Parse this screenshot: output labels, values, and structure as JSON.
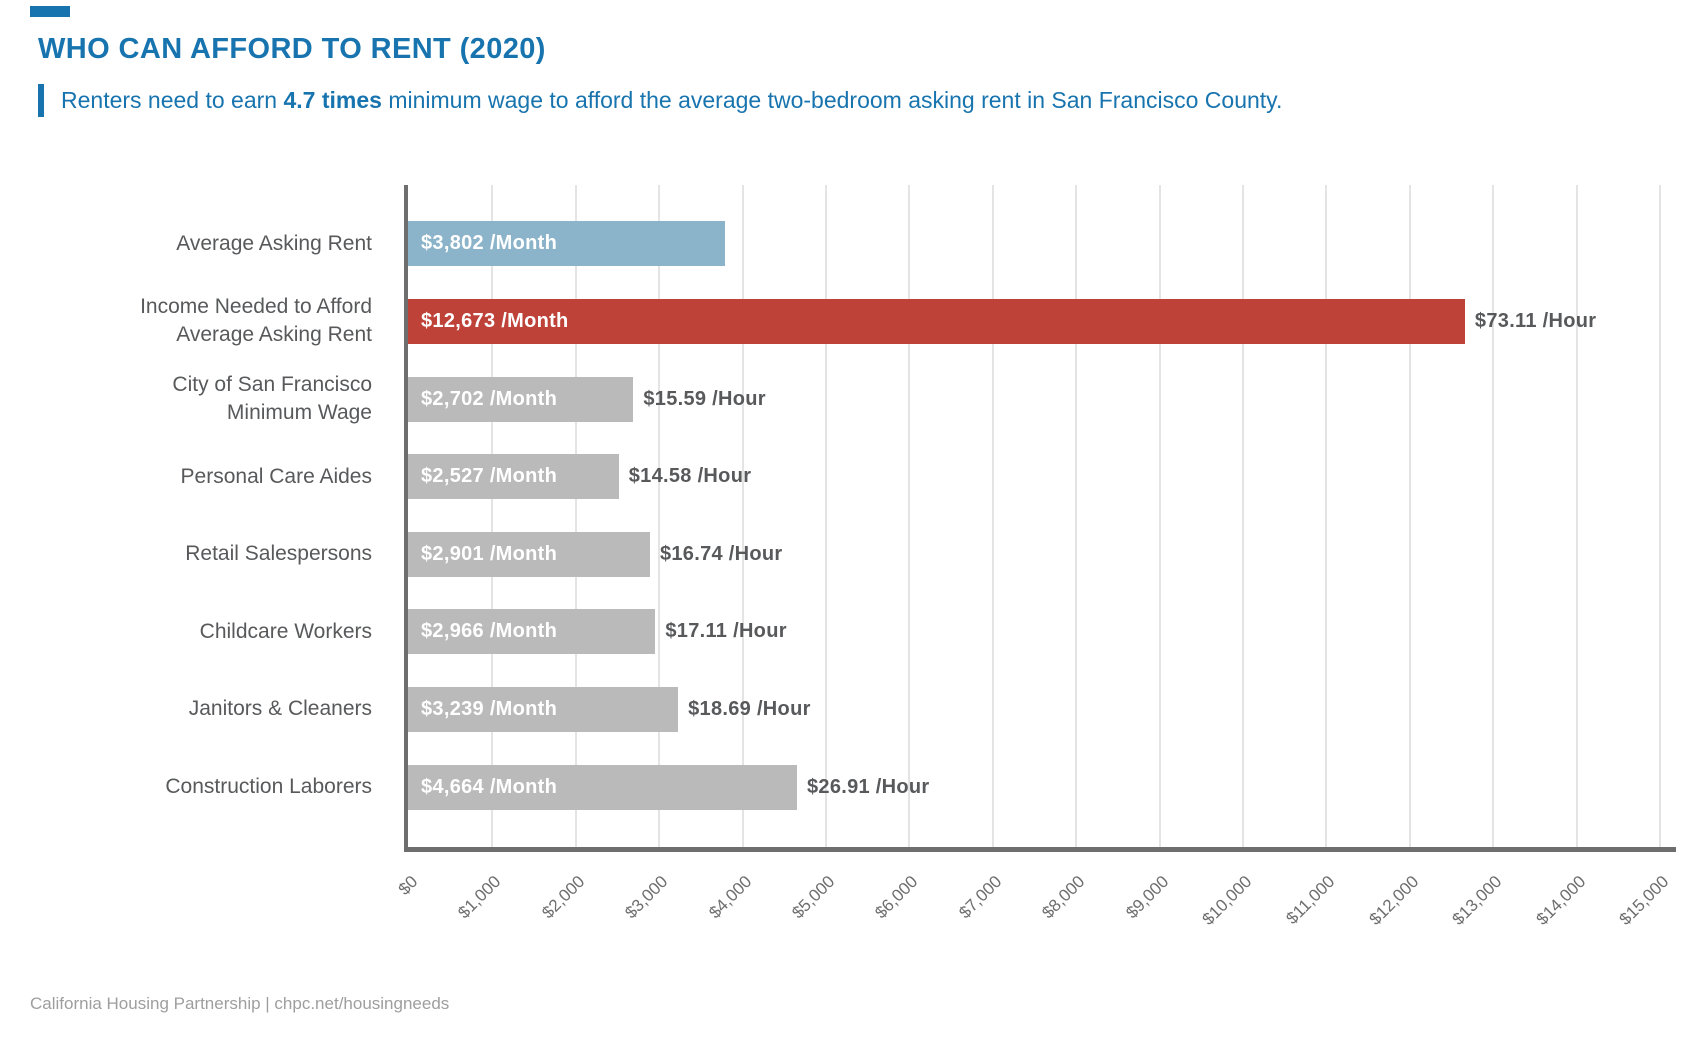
{
  "theme": {
    "accent_blue": "#1874AE",
    "bar_blue": "#8BB3C9",
    "bar_red": "#BF4238",
    "bar_gray": "#BABABA",
    "axis_gray": "#6E6E6E",
    "grid_gray": "#E4E4E4",
    "label_gray": "#58595B",
    "tick_gray": "#6E6E6E",
    "footer_gray": "#9E9E9E"
  },
  "header": {
    "title": "WHO CAN AFFORD TO RENT (2020)",
    "subtitle_prefix": "Renters need to earn ",
    "subtitle_bold": "4.7 times",
    "subtitle_suffix": " minimum wage to afford the average two-bedroom asking rent in San Francisco County."
  },
  "chart_data": {
    "type": "bar",
    "orientation": "horizontal",
    "title": "WHO CAN AFFORD TO RENT (2020)",
    "xlabel": "",
    "ylabel": "",
    "xlim": [
      0,
      15000
    ],
    "grid": true,
    "x_ticks": [
      "$0",
      "$1,000",
      "$2,000",
      "$3,000",
      "$4,000",
      "$5,000",
      "$6,000",
      "$7,000",
      "$8,000",
      "$9,000",
      "$10,000",
      "$11,000",
      "$12,000",
      "$13,000",
      "$14,000",
      "$15,000"
    ],
    "x_tick_values": [
      0,
      1000,
      2000,
      3000,
      4000,
      5000,
      6000,
      7000,
      8000,
      9000,
      10000,
      11000,
      12000,
      13000,
      14000,
      15000
    ],
    "rows": [
      {
        "category": "Average Asking Rent",
        "value": 3802,
        "bar_label": "$3,802 /Month",
        "hour_label": "",
        "color_key": "bar_blue"
      },
      {
        "category": "Income Needed to Afford\nAverage Asking Rent",
        "value": 12673,
        "bar_label": "$12,673 /Month",
        "hour_label": "$73.11 /Hour",
        "color_key": "bar_red"
      },
      {
        "category": "City of San Francisco\nMinimum Wage",
        "value": 2702,
        "bar_label": "$2,702 /Month",
        "hour_label": "$15.59 /Hour",
        "color_key": "bar_gray"
      },
      {
        "category": "Personal Care Aides",
        "value": 2527,
        "bar_label": "$2,527 /Month",
        "hour_label": "$14.58 /Hour",
        "color_key": "bar_gray"
      },
      {
        "category": "Retail Salespersons",
        "value": 2901,
        "bar_label": "$2,901 /Month",
        "hour_label": "$16.74 /Hour",
        "color_key": "bar_gray"
      },
      {
        "category": "Childcare Workers",
        "value": 2966,
        "bar_label": "$2,966 /Month",
        "hour_label": "$17.11 /Hour",
        "color_key": "bar_gray"
      },
      {
        "category": "Janitors & Cleaners",
        "value": 3239,
        "bar_label": "$3,239 /Month",
        "hour_label": "$18.69 /Hour",
        "color_key": "bar_gray"
      },
      {
        "category": "Construction Laborers",
        "value": 4664,
        "bar_label": "$4,664 /Month",
        "hour_label": "$26.91 /Hour",
        "color_key": "bar_gray"
      }
    ]
  },
  "footer": {
    "text": "California Housing Partnership | chpc.net/housingneeds"
  }
}
